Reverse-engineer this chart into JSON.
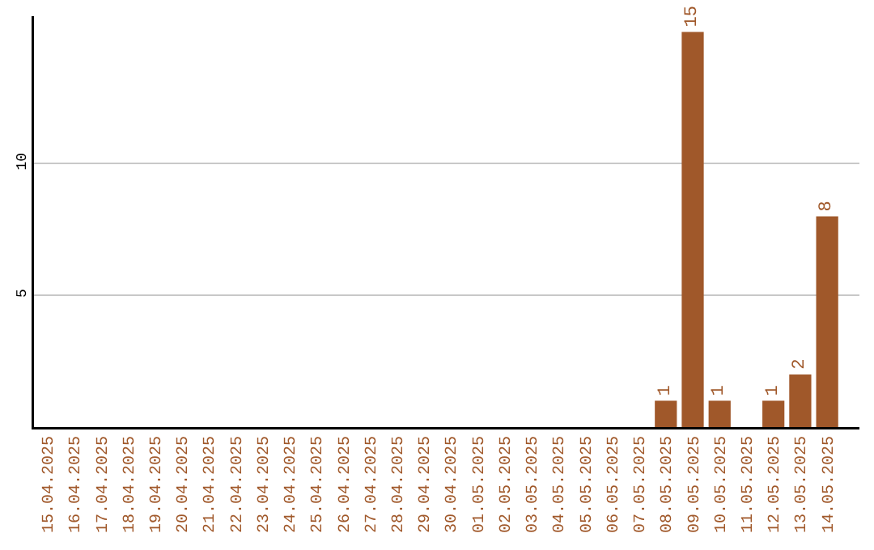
{
  "chart_data": {
    "type": "bar",
    "categories": [
      "15.04.2025",
      "16.04.2025",
      "17.04.2025",
      "18.04.2025",
      "19.04.2025",
      "20.04.2025",
      "21.04.2025",
      "22.04.2025",
      "23.04.2025",
      "24.04.2025",
      "25.04.2025",
      "26.04.2025",
      "27.04.2025",
      "28.04.2025",
      "29.04.2025",
      "30.04.2025",
      "01.05.2025",
      "02.05.2025",
      "03.05.2025",
      "04.05.2025",
      "05.05.2025",
      "06.05.2025",
      "07.05.2025",
      "08.05.2025",
      "09.05.2025",
      "10.05.2025",
      "11.05.2025",
      "12.05.2025",
      "13.05.2025",
      "14.05.2025"
    ],
    "values": [
      0,
      0,
      0,
      0,
      0,
      0,
      0,
      0,
      0,
      0,
      0,
      0,
      0,
      0,
      0,
      0,
      0,
      0,
      0,
      0,
      0,
      0,
      0,
      1,
      15,
      1,
      0,
      1,
      2,
      8
    ],
    "value_labels": [
      null,
      null,
      null,
      null,
      null,
      null,
      null,
      null,
      null,
      null,
      null,
      null,
      null,
      null,
      null,
      null,
      null,
      null,
      null,
      null,
      null,
      null,
      null,
      "1",
      "15",
      "1",
      null,
      "1",
      "2",
      "8"
    ],
    "color": "#a0582a",
    "ylim": [
      0,
      15.6
    ],
    "yticks": [
      5,
      10
    ],
    "grid": "y"
  }
}
